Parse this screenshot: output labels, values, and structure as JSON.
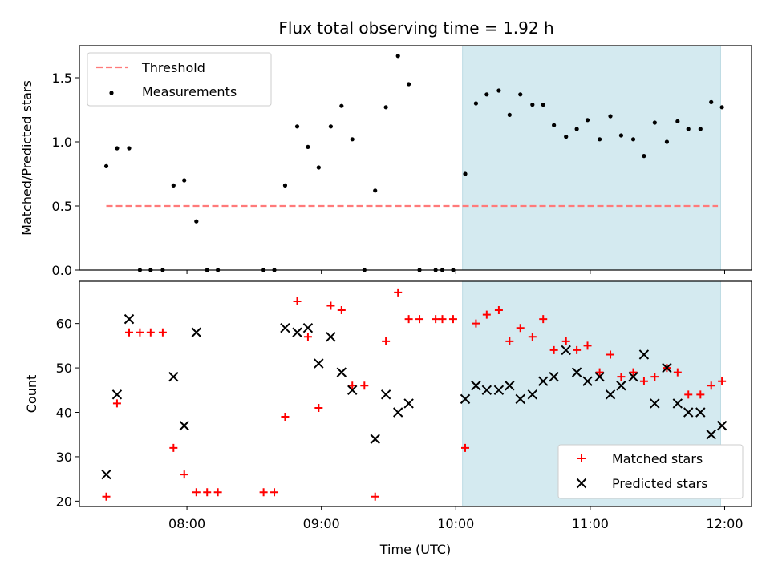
{
  "title": "Flux total observing time = 1.92 h",
  "chart_data": [
    {
      "type": "scatter",
      "ylabel": "Matched/Predicted stars",
      "ylim": [
        0,
        1.75
      ],
      "yticks": [
        "0.0",
        "0.5",
        "1.0",
        "1.5"
      ],
      "xlim_hours": [
        7.2,
        12.2
      ],
      "threshold": {
        "name": "Threshold",
        "value": 0.5,
        "x_range": [
          7.4,
          11.95
        ],
        "color": "#ff7a7a"
      },
      "shaded_region": {
        "x_range": [
          10.05,
          11.97
        ],
        "color": "#d4eaf0"
      },
      "series": [
        {
          "name": "Measurements",
          "color": "#000000",
          "points": [
            [
              7.4,
              0.81
            ],
            [
              7.48,
              0.95
            ],
            [
              7.57,
              0.95
            ],
            [
              7.65,
              0.0
            ],
            [
              7.73,
              0.0
            ],
            [
              7.82,
              0.0
            ],
            [
              7.9,
              0.66
            ],
            [
              7.98,
              0.7
            ],
            [
              8.07,
              0.38
            ],
            [
              8.15,
              0.0
            ],
            [
              8.23,
              0.0
            ],
            [
              8.57,
              0.0
            ],
            [
              8.65,
              0.0
            ],
            [
              8.73,
              0.66
            ],
            [
              8.82,
              1.12
            ],
            [
              8.9,
              0.96
            ],
            [
              8.98,
              0.8
            ],
            [
              9.07,
              1.12
            ],
            [
              9.15,
              1.28
            ],
            [
              9.23,
              1.02
            ],
            [
              9.32,
              0.0
            ],
            [
              9.4,
              0.62
            ],
            [
              9.48,
              1.27
            ],
            [
              9.57,
              1.67
            ],
            [
              9.65,
              1.45
            ],
            [
              9.73,
              0.0
            ],
            [
              9.85,
              0.0
            ],
            [
              9.9,
              0.0
            ],
            [
              9.98,
              0.0
            ],
            [
              10.07,
              0.75
            ],
            [
              10.15,
              1.3
            ],
            [
              10.23,
              1.37
            ],
            [
              10.32,
              1.4
            ],
            [
              10.4,
              1.21
            ],
            [
              10.48,
              1.37
            ],
            [
              10.57,
              1.29
            ],
            [
              10.65,
              1.29
            ],
            [
              10.73,
              1.13
            ],
            [
              10.82,
              1.04
            ],
            [
              10.9,
              1.1
            ],
            [
              10.98,
              1.17
            ],
            [
              11.07,
              1.02
            ],
            [
              11.15,
              1.2
            ],
            [
              11.23,
              1.05
            ],
            [
              11.32,
              1.02
            ],
            [
              11.4,
              0.89
            ],
            [
              11.48,
              1.15
            ],
            [
              11.57,
              1.0
            ],
            [
              11.65,
              1.16
            ],
            [
              11.73,
              1.1
            ],
            [
              11.82,
              1.1
            ],
            [
              11.9,
              1.31
            ],
            [
              11.98,
              1.27
            ]
          ]
        }
      ],
      "legend": "top-left"
    },
    {
      "type": "scatter",
      "xlabel": "Time (UTC)",
      "ylabel": "Count",
      "ylim": [
        18.8,
        69.5
      ],
      "yticks": [
        "20",
        "30",
        "40",
        "50",
        "60"
      ],
      "xlim_hours": [
        7.2,
        12.2
      ],
      "xticks": [
        "08:00",
        "09:00",
        "10:00",
        "11:00",
        "12:00"
      ],
      "shaded_region": {
        "x_range": [
          10.05,
          11.97
        ],
        "color": "#d4eaf0"
      },
      "series": [
        {
          "name": "Matched stars",
          "marker": "plus",
          "color": "#ff0000",
          "points": [
            [
              7.4,
              21
            ],
            [
              7.48,
              42
            ],
            [
              7.57,
              58
            ],
            [
              7.65,
              58
            ],
            [
              7.73,
              58
            ],
            [
              7.82,
              58
            ],
            [
              7.9,
              32
            ],
            [
              7.98,
              26
            ],
            [
              8.07,
              22
            ],
            [
              8.15,
              22
            ],
            [
              8.23,
              22
            ],
            [
              8.57,
              22
            ],
            [
              8.65,
              22
            ],
            [
              8.73,
              39
            ],
            [
              8.82,
              65
            ],
            [
              8.9,
              57
            ],
            [
              8.98,
              41
            ],
            [
              9.07,
              64
            ],
            [
              9.15,
              63
            ],
            [
              9.23,
              46
            ],
            [
              9.32,
              46
            ],
            [
              9.4,
              21
            ],
            [
              9.48,
              56
            ],
            [
              9.57,
              67
            ],
            [
              9.65,
              61
            ],
            [
              9.73,
              61
            ],
            [
              9.85,
              61
            ],
            [
              9.9,
              61
            ],
            [
              9.98,
              61
            ],
            [
              10.07,
              32
            ],
            [
              10.15,
              60
            ],
            [
              10.23,
              62
            ],
            [
              10.32,
              63
            ],
            [
              10.4,
              56
            ],
            [
              10.48,
              59
            ],
            [
              10.57,
              57
            ],
            [
              10.65,
              61
            ],
            [
              10.73,
              54
            ],
            [
              10.82,
              56
            ],
            [
              10.9,
              54
            ],
            [
              10.98,
              55
            ],
            [
              11.07,
              49
            ],
            [
              11.15,
              53
            ],
            [
              11.23,
              48
            ],
            [
              11.32,
              49
            ],
            [
              11.4,
              47
            ],
            [
              11.48,
              48
            ],
            [
              11.57,
              50
            ],
            [
              11.65,
              49
            ],
            [
              11.73,
              44
            ],
            [
              11.82,
              44
            ],
            [
              11.9,
              46
            ],
            [
              11.98,
              47
            ]
          ]
        },
        {
          "name": "Predicted stars",
          "marker": "x",
          "color": "#000000",
          "points": [
            [
              7.4,
              26
            ],
            [
              7.48,
              44
            ],
            [
              7.57,
              61
            ],
            [
              7.9,
              48
            ],
            [
              7.98,
              37
            ],
            [
              8.07,
              58
            ],
            [
              8.73,
              59
            ],
            [
              8.82,
              58
            ],
            [
              8.9,
              59
            ],
            [
              8.98,
              51
            ],
            [
              9.07,
              57
            ],
            [
              9.15,
              49
            ],
            [
              9.23,
              45
            ],
            [
              9.4,
              34
            ],
            [
              9.48,
              44
            ],
            [
              9.57,
              40
            ],
            [
              9.65,
              42
            ],
            [
              10.07,
              43
            ],
            [
              10.15,
              46
            ],
            [
              10.23,
              45
            ],
            [
              10.32,
              45
            ],
            [
              10.4,
              46
            ],
            [
              10.48,
              43
            ],
            [
              10.57,
              44
            ],
            [
              10.65,
              47
            ],
            [
              10.73,
              48
            ],
            [
              10.82,
              54
            ],
            [
              10.9,
              49
            ],
            [
              10.98,
              47
            ],
            [
              11.07,
              48
            ],
            [
              11.15,
              44
            ],
            [
              11.23,
              46
            ],
            [
              11.32,
              48
            ],
            [
              11.4,
              53
            ],
            [
              11.48,
              42
            ],
            [
              11.57,
              50
            ],
            [
              11.65,
              42
            ],
            [
              11.73,
              40
            ],
            [
              11.82,
              40
            ],
            [
              11.9,
              35
            ],
            [
              11.98,
              37
            ]
          ]
        }
      ],
      "legend": "bottom-right"
    }
  ]
}
